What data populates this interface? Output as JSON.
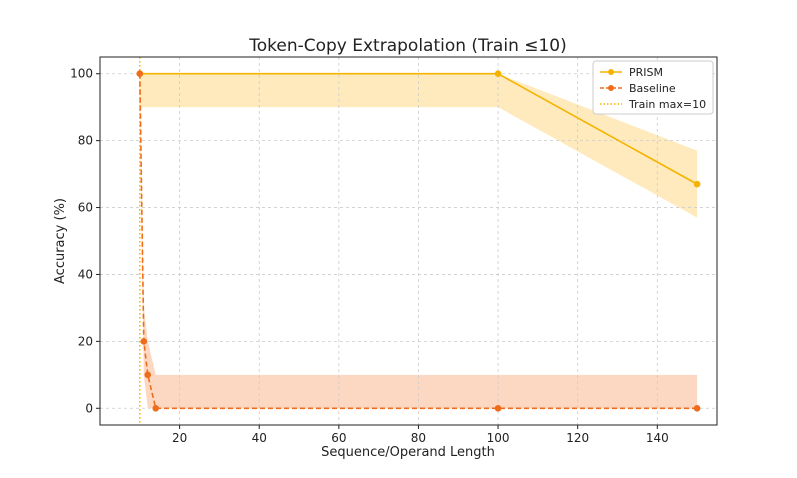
{
  "chart_data": {
    "type": "line",
    "title": "Token-Copy Extrapolation (Train ≤10)",
    "xlabel": "Sequence/Operand Length",
    "ylabel": "Accuracy (%)",
    "xlim": [
      0,
      155
    ],
    "ylim": [
      -5,
      105
    ],
    "xticks": [
      20,
      40,
      60,
      80,
      100,
      120,
      140
    ],
    "yticks": [
      0,
      20,
      40,
      60,
      80,
      100
    ],
    "grid": true,
    "legend_position": "top-right",
    "series": [
      {
        "name": "PRISM",
        "color": "#f5b300",
        "line_style": "solid",
        "x": [
          10,
          100,
          150
        ],
        "y": [
          100,
          100,
          67
        ],
        "band_lower": [
          90,
          90,
          57
        ],
        "band_upper": [
          100,
          100,
          77
        ],
        "band_color": "#fde3a7"
      },
      {
        "name": "Baseline",
        "color": "#ef6c1a",
        "line_style": "dashed",
        "x": [
          10,
          11,
          12,
          14,
          100,
          150
        ],
        "y": [
          100,
          20,
          10,
          0,
          0,
          0
        ],
        "band_lower": [
          90,
          10,
          0,
          0,
          0,
          0
        ],
        "band_upper": [
          100,
          30,
          20,
          10,
          10,
          10
        ],
        "band_color": "#fbc9ad"
      }
    ],
    "vline": {
      "name": "Train max=10",
      "x": 10,
      "color": "#f5b300",
      "line_style": "dotted"
    }
  }
}
